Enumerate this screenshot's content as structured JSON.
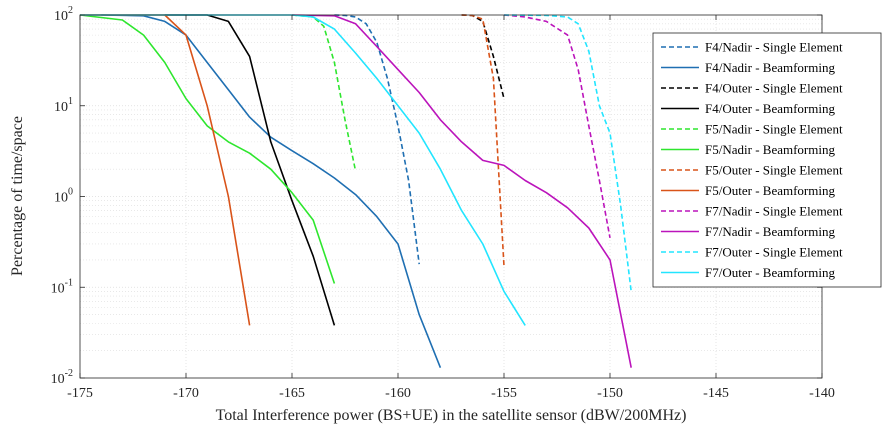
{
  "chart_data": {
    "type": "line",
    "xlabel": "Total Interference power (BS+UE) in the satellite sensor (dBW/200MHz)",
    "ylabel": "Percentage of time/space",
    "xlim": [
      -175,
      -140
    ],
    "ylim": [
      0.01,
      100
    ],
    "yscale": "log",
    "grid": true,
    "legend_position": "top-right",
    "x_ticks": [
      -175,
      -170,
      -165,
      -160,
      -155,
      -150,
      -145,
      -140
    ],
    "x_tick_labels": [
      "-175",
      "-170",
      "-165",
      "-160",
      "-155",
      "-150",
      "-145",
      "-140"
    ],
    "y_ticks": [
      {
        "base": "10",
        "exp": "-2",
        "value": 0.01
      },
      {
        "base": "10",
        "exp": "-1",
        "value": 0.1
      },
      {
        "base": "10",
        "exp": "0",
        "value": 1
      },
      {
        "base": "10",
        "exp": "1",
        "value": 10
      },
      {
        "base": "10",
        "exp": "2",
        "value": 100
      }
    ],
    "series": [
      {
        "name": "F4/Nadir - Single Element",
        "color": "#1f6fb2",
        "dash": true,
        "x": [
          -163,
          -162.5,
          -162,
          -161.5,
          -161,
          -160.5,
          -160,
          -159.5,
          -159
        ],
        "y": [
          100,
          99,
          95,
          80,
          50,
          20,
          6,
          1.5,
          0.18
        ]
      },
      {
        "name": "F4/Nadir - Beamforming",
        "color": "#1f6fb2",
        "dash": false,
        "x": [
          -174,
          -172,
          -171,
          -170,
          -169,
          -168,
          -167,
          -166,
          -165,
          -164,
          -163,
          -162,
          -161,
          -160,
          -159,
          -158
        ],
        "y": [
          100,
          98,
          85,
          60,
          30,
          15,
          7.5,
          4.5,
          3.2,
          2.3,
          1.6,
          1.05,
          0.6,
          0.3,
          0.05,
          0.013
        ]
      },
      {
        "name": "F4/Outer - Single Element",
        "color": "#000000",
        "dash": true,
        "x": [
          -157,
          -156.5,
          -156,
          -155.5,
          -155
        ],
        "y": [
          100,
          99,
          85,
          35,
          12
        ]
      },
      {
        "name": "F4/Outer - Beamforming",
        "color": "#000000",
        "dash": false,
        "x": [
          -171,
          -170,
          -169,
          -168,
          -167,
          -166,
          -165,
          -164,
          -163
        ],
        "y": [
          100,
          100,
          100,
          85,
          35,
          4,
          0.9,
          0.22,
          0.038
        ]
      },
      {
        "name": "F5/Nadir - Single Element",
        "color": "#2ee62e",
        "dash": true,
        "x": [
          -165,
          -164,
          -163.5,
          -163,
          -162.5,
          -162
        ],
        "y": [
          100,
          95,
          75,
          30,
          7,
          1.9
        ]
      },
      {
        "name": "F5/Nadir - Beamforming",
        "color": "#2ee62e",
        "dash": false,
        "x": [
          -175,
          -173,
          -172,
          -171,
          -170,
          -169,
          -168,
          -167,
          -166,
          -165,
          -164,
          -163
        ],
        "y": [
          100,
          88,
          60,
          30,
          12,
          6,
          4,
          3,
          2,
          1.1,
          0.55,
          0.11
        ]
      },
      {
        "name": "F5/Outer - Single Element",
        "color": "#d95319",
        "dash": true,
        "x": [
          -157,
          -156.5,
          -156,
          -155.5,
          -155
        ],
        "y": [
          100,
          99,
          90,
          20,
          0.17
        ]
      },
      {
        "name": "F5/Outer - Beamforming",
        "color": "#d95319",
        "dash": false,
        "x": [
          -175,
          -171,
          -170,
          -169,
          -168,
          -167
        ],
        "y": [
          100,
          100,
          60,
          10,
          1,
          0.038
        ]
      },
      {
        "name": "F7/Nadir - Single Element",
        "color": "#bb14bb",
        "dash": true,
        "x": [
          -155,
          -154,
          -153,
          -152,
          -151.5,
          -151,
          -150.5,
          -150
        ],
        "y": [
          100,
          95,
          85,
          60,
          25,
          6,
          1.5,
          0.35
        ]
      },
      {
        "name": "F7/Nadir - Beamforming",
        "color": "#bb14bb",
        "dash": false,
        "x": [
          -165,
          -163,
          -162,
          -161,
          -160,
          -159,
          -158,
          -157,
          -156,
          -155,
          -154,
          -153,
          -152,
          -151,
          -150,
          -149
        ],
        "y": [
          100,
          98,
          80,
          45,
          25,
          14,
          7,
          4,
          2.5,
          2.2,
          1.5,
          1.1,
          0.75,
          0.45,
          0.2,
          0.013
        ]
      },
      {
        "name": "F7/Outer - Single Element",
        "color": "#22e5ff",
        "dash": true,
        "x": [
          -155,
          -153,
          -152,
          -151.5,
          -151,
          -150.5,
          -150,
          -149.5,
          -149
        ],
        "y": [
          100,
          99,
          95,
          80,
          40,
          10,
          5,
          0.8,
          0.09
        ]
      },
      {
        "name": "F7/Outer - Beamforming",
        "color": "#22e5ff",
        "dash": false,
        "x": [
          -175,
          -165,
          -164,
          -163,
          -162,
          -161,
          -160,
          -159,
          -158,
          -157,
          -156,
          -155,
          -154
        ],
        "y": [
          100,
          100,
          95,
          70,
          38,
          20,
          10,
          5,
          2,
          0.7,
          0.3,
          0.09,
          0.038
        ]
      }
    ]
  }
}
